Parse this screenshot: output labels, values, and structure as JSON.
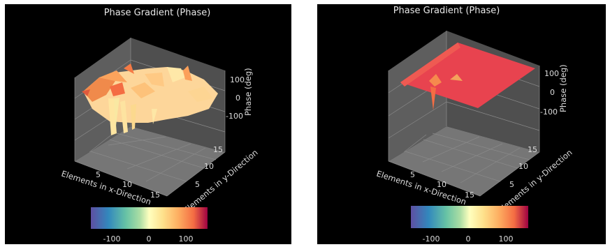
{
  "chart_data": [
    {
      "type": "surface3d",
      "title": "Phase Gradient (Phase)",
      "xlabel": "Elements in x-Direction",
      "ylabel": "Elements in y-Direction",
      "zlabel": "Phase (deg)",
      "x_ticks": [
        5,
        10,
        15
      ],
      "y_ticks": [
        5,
        10,
        15
      ],
      "z_ticks": [
        100,
        0,
        -100
      ],
      "colorbar": {
        "colormap": "Spectral_r",
        "ticks": [
          -100,
          0,
          100
        ]
      },
      "xlim": [
        1,
        16
      ],
      "ylim": [
        1,
        16
      ],
      "zlim": [
        -180,
        180
      ],
      "surface": "irregular phase values fluctuating mostly near 0 deg with deep dips toward -100 deg around x 3-7 at the front edge"
    },
    {
      "type": "surface3d",
      "title": "Phase Gradient (Phase)",
      "xlabel": "Elements in x-Direction",
      "ylabel": "Elements in y-Direction",
      "zlabel": "Phase (deg)",
      "x_ticks": [
        5,
        10,
        15
      ],
      "y_ticks": [
        5,
        10,
        15
      ],
      "z_ticks": [
        100,
        0,
        -100
      ],
      "colorbar": {
        "colormap": "Spectral_r",
        "ticks": [
          -100,
          0,
          100
        ]
      },
      "xlim": [
        1,
        16
      ],
      "ylim": [
        1,
        16
      ],
      "zlim": [
        -180,
        180
      ],
      "surface": "nearly flat plane at about 150 deg with a small dip near x 3-5 at the front edge"
    }
  ]
}
